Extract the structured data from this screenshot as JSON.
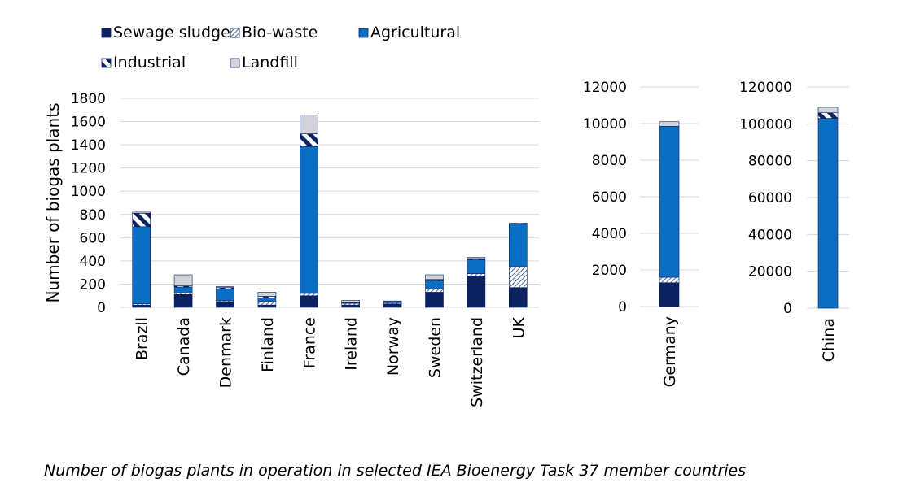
{
  "caption": "Number of biogas plants in operation in selected IEA Bioenergy Task 37 member countries",
  "chart_data": {
    "type": "bar",
    "stacked": true,
    "legend": {
      "placement": "top-left",
      "entries": [
        {
          "name": "Sewage sludge",
          "pattern": "solid",
          "color": "#0b2160"
        },
        {
          "name": "Bio-waste",
          "pattern": "dense-diagonal-hatch",
          "color": "#1f3a8a"
        },
        {
          "name": "Agricultural",
          "pattern": "solid",
          "color": "#0a6fc2"
        },
        {
          "name": "Industrial",
          "pattern": "wide-diagonal-stripes",
          "color": "#0b2160"
        },
        {
          "name": "Landfill",
          "pattern": "solid",
          "color": "#d0d3d8"
        }
      ]
    },
    "panels": [
      {
        "ylabel": "Number of biogas plants",
        "ylim": [
          0,
          1800
        ],
        "yticks": [
          "0",
          "200",
          "400",
          "600",
          "800",
          "1000",
          "1200",
          "1400",
          "1600",
          "1800"
        ],
        "grid": true,
        "categories": [
          "Brazil",
          "Canada",
          "Denmark",
          "Finland",
          "France",
          "Ireland",
          "Norway",
          "Sweden",
          "Switzerland",
          "UK"
        ],
        "series": [
          {
            "name": "Sewage sludge",
            "values": [
              20,
              110,
              50,
              20,
              100,
              20,
              30,
              130,
              270,
              170
            ]
          },
          {
            "name": "Bio-waste",
            "values": [
              10,
              15,
              10,
              30,
              20,
              15,
              10,
              30,
              20,
              180
            ]
          },
          {
            "name": "Agricultural",
            "values": [
              665,
              50,
              100,
              30,
              1265,
              5,
              10,
              70,
              120,
              370
            ]
          },
          {
            "name": "Industrial",
            "values": [
              115,
              10,
              10,
              15,
              110,
              0,
              0,
              10,
              10,
              5
            ]
          },
          {
            "name": "Landfill",
            "values": [
              10,
              95,
              10,
              35,
              160,
              20,
              5,
              40,
              10,
              0
            ]
          }
        ]
      },
      {
        "ylim": [
          0,
          12000
        ],
        "yticks": [
          "0",
          "2000",
          "4000",
          "6000",
          "8000",
          "10000",
          "12000"
        ],
        "grid": true,
        "categories": [
          "Germany"
        ],
        "series": [
          {
            "name": "Sewage sludge",
            "values": [
              1300
            ]
          },
          {
            "name": "Bio-waste",
            "values": [
              300
            ]
          },
          {
            "name": "Agricultural",
            "values": [
              8250
            ]
          },
          {
            "name": "Industrial",
            "values": [
              0
            ]
          },
          {
            "name": "Landfill",
            "values": [
              250
            ]
          }
        ]
      },
      {
        "ylim": [
          0,
          120000
        ],
        "yticks": [
          "0",
          "20000",
          "40000",
          "60000",
          "80000",
          "100000",
          "120000"
        ],
        "grid": true,
        "categories": [
          "China"
        ],
        "series": [
          {
            "name": "Sewage sludge",
            "values": [
              0
            ]
          },
          {
            "name": "Bio-waste",
            "values": [
              0
            ]
          },
          {
            "name": "Agricultural",
            "values": [
              103000
            ]
          },
          {
            "name": "Industrial",
            "values": [
              3000
            ]
          },
          {
            "name": "Landfill",
            "values": [
              3000
            ]
          }
        ]
      }
    ]
  }
}
